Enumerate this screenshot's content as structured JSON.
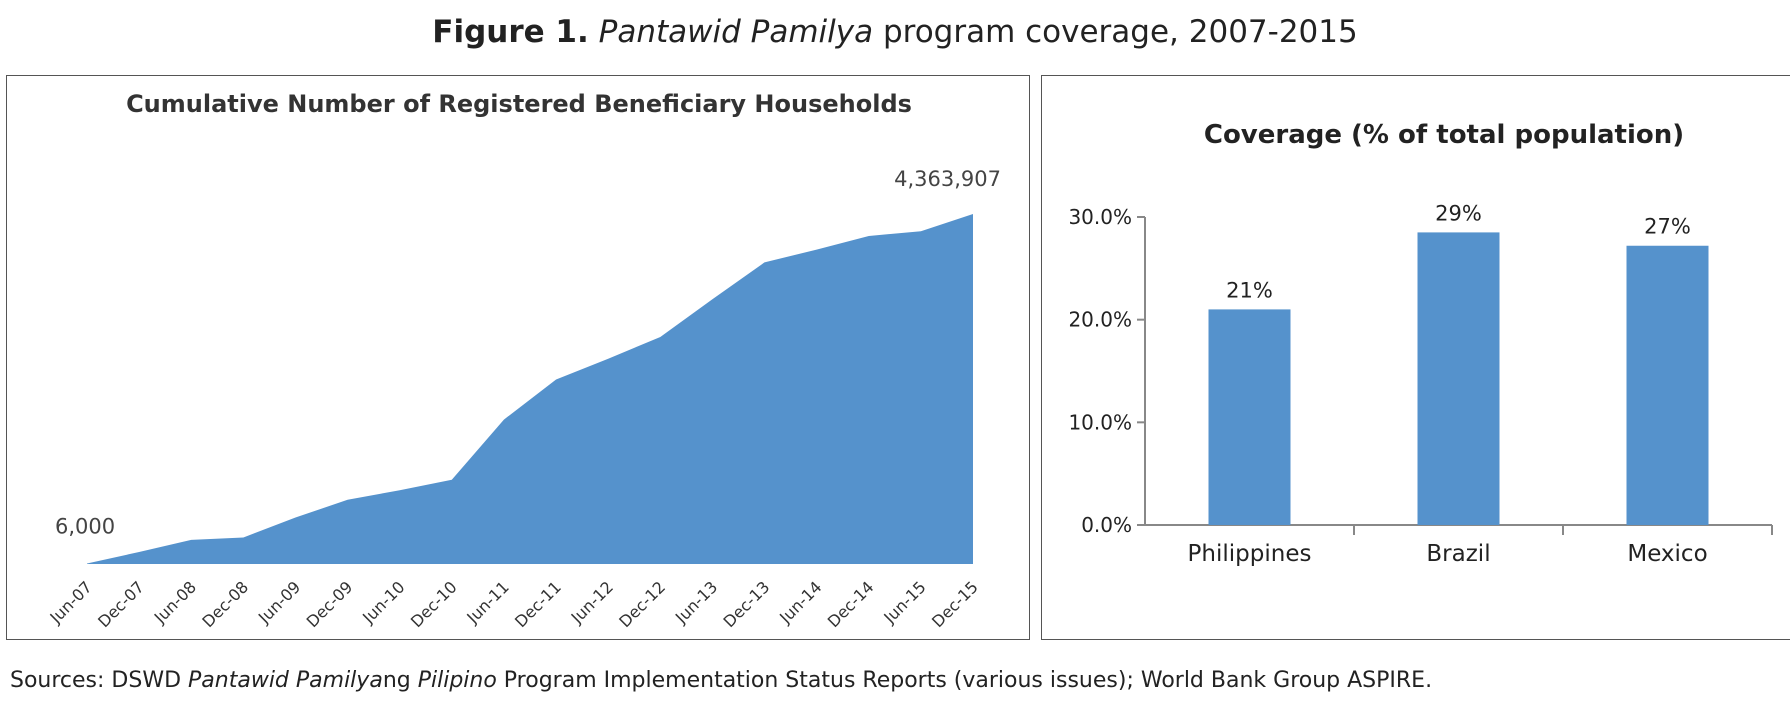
{
  "figure": {
    "label": "Figure 1.",
    "title_italic": "Pantawid Pamilya",
    "title_rest": " program coverage, 2007-2015"
  },
  "source": {
    "prefix": "Sources: DSWD ",
    "italic1": "Pantawid Pamilya",
    "mid1": "ng ",
    "italic2": "Pilipino",
    "rest": " Program Implementation Status Reports (various issues); World Bank Group ASPIRE."
  },
  "colors": {
    "fill": "#5592cc",
    "axis": "#888888",
    "text": "#333333"
  },
  "chart_data": [
    {
      "type": "area",
      "title": "Cumulative Number of Registered Beneficiary Households",
      "categories": [
        "Jun-07",
        "Dec-07",
        "Jun-08",
        "Dec-08",
        "Jun-09",
        "Dec-09",
        "Jun-10",
        "Dec-10",
        "Jun-11",
        "Dec-11",
        "Jun-12",
        "Dec-12",
        "Jun-13",
        "Dec-13",
        "Jun-14",
        "Dec-14",
        "Jun-15",
        "Dec-15"
      ],
      "values": [
        6000,
        150000,
        300000,
        330000,
        580000,
        800000,
        920000,
        1050000,
        1800000,
        2300000,
        2560000,
        2830000,
        3300000,
        3760000,
        3920000,
        4090000,
        4150000,
        4363907
      ],
      "data_labels": [
        {
          "index": 0,
          "text": "6,000"
        },
        {
          "index": 17,
          "text": "4,363,907"
        }
      ],
      "ylim": [
        0,
        4600000
      ],
      "grid": false
    },
    {
      "type": "bar",
      "title": "Coverage (% of total population)",
      "categories": [
        "Philippines",
        "Brazil",
        "Mexico"
      ],
      "values": [
        21,
        28.5,
        27.2
      ],
      "data_labels": [
        "21%",
        "29%",
        "27%"
      ],
      "yticks": [
        "0.0%",
        "10.0%",
        "20.0%",
        "30.0%"
      ],
      "ylim": [
        0,
        30
      ],
      "grid": false
    }
  ]
}
